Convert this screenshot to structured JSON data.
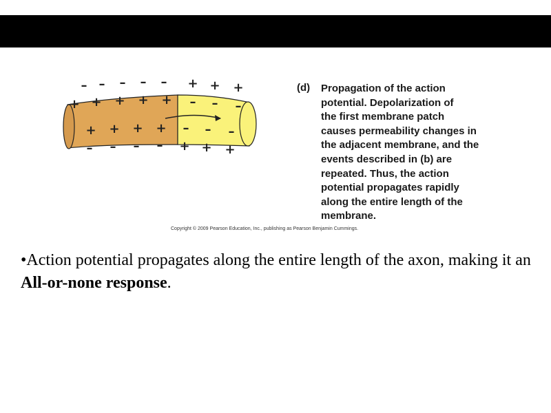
{
  "figure": {
    "panel_label": "(d)",
    "caption_lines": [
      "Propagation of the action",
      "potential. Depolarization of",
      "the first membrane patch",
      "causes permeability changes in",
      "the adjacent membrane, and the",
      "events described in (b) are",
      "repeated. Thus, the action",
      "potential propagates rapidly",
      "along the entire length of the",
      "membrane."
    ],
    "copyright": "Copyright © 2009 Pearson Education, Inc., publishing as Pearson Benjamin Cummings.",
    "colors": {
      "depolarized_segment": "#E0A657",
      "resting_segment": "#FAF27A",
      "outline": "#222222"
    },
    "charges": {
      "top_outer": [
        "–",
        "–",
        "–",
        "–",
        "–",
        "+",
        "+",
        "+"
      ],
      "top_inner": [
        "+",
        "+",
        "+",
        "+",
        "+",
        "–",
        "–",
        "–"
      ],
      "bottom_inner": [
        "+",
        "+",
        "+",
        "+",
        "–",
        "–",
        "–"
      ],
      "bottom_outer": [
        "–",
        "–",
        "–",
        "–",
        "+",
        "+",
        "+"
      ]
    }
  },
  "bullet": {
    "marker": "•",
    "text_before": "Action potential propagates along the entire length of the axon, making it an ",
    "emphasis": "All-or-none response",
    "text_after": "."
  }
}
